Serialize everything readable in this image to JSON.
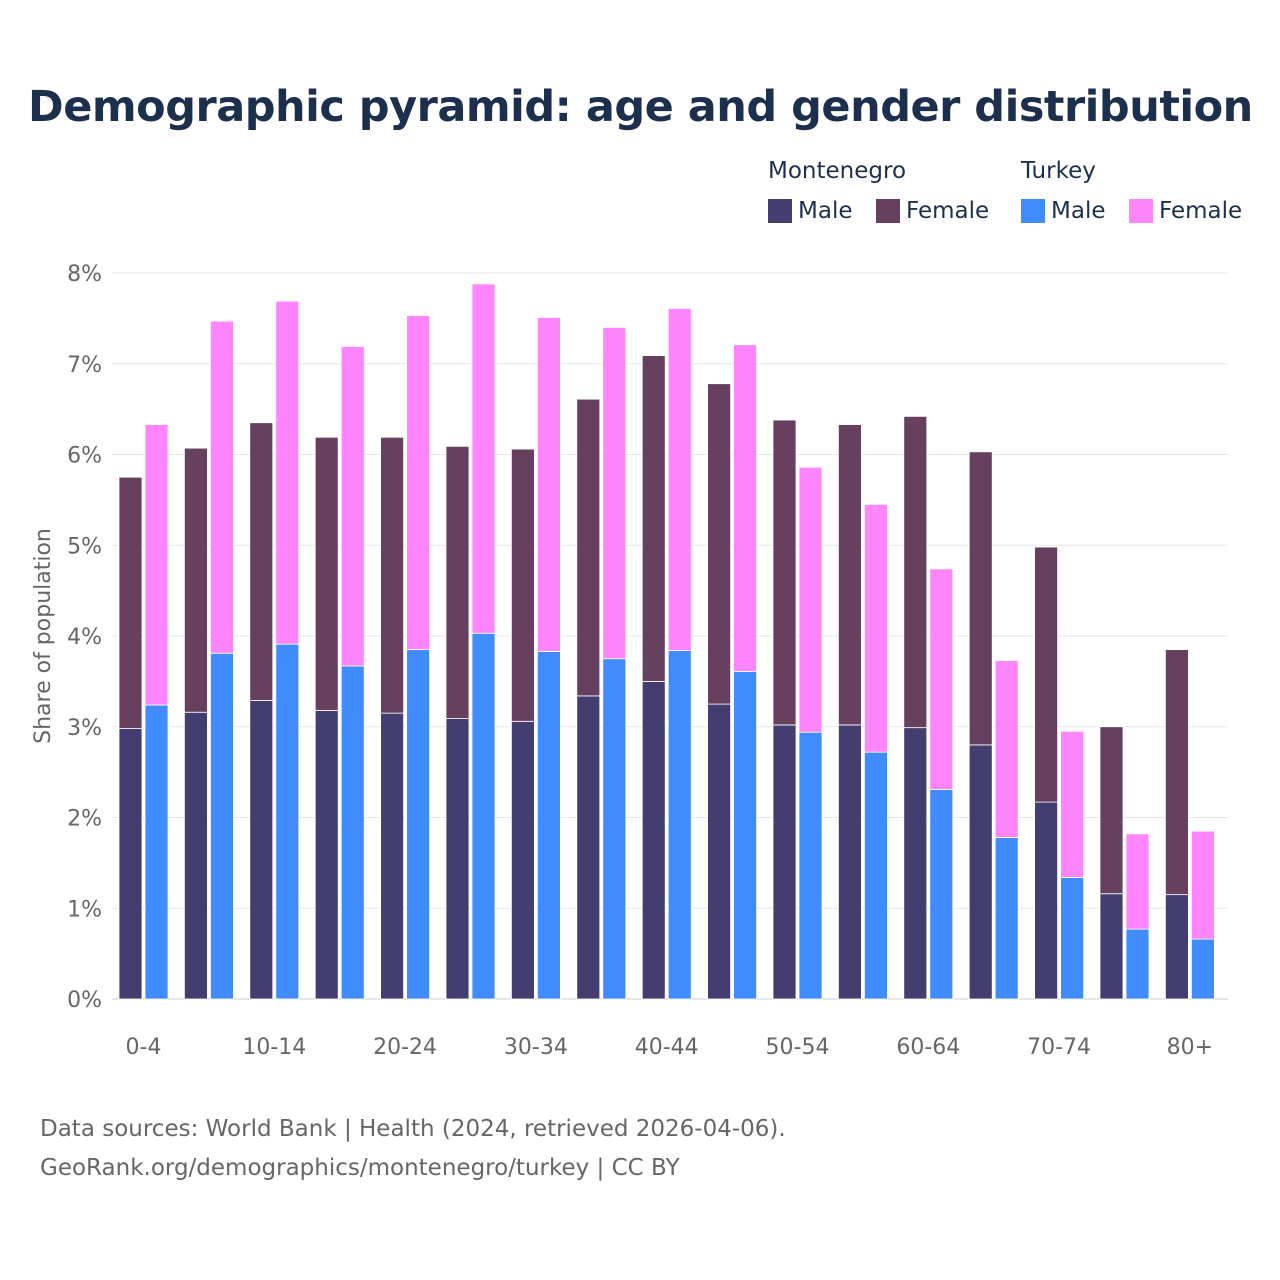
{
  "title": "Demographic pyramid: age and gender distribution",
  "legend": {
    "montenegro_title": "Montenegro",
    "turkey_title": "Turkey",
    "male_label": "Male",
    "female_label": "Female"
  },
  "colors": {
    "montenegro_male": "#433e6f",
    "montenegro_female": "#673f5f",
    "turkey_male": "#408cff",
    "turkey_female": "#ff85ff"
  },
  "source": {
    "line1": "Data sources: World Bank | Health (2024, retrieved 2026-04-06).",
    "line2": "GeoRank.org/demographics/montenegro/turkey | CC BY"
  },
  "chart_data": {
    "type": "bar",
    "stacked": true,
    "grouped": true,
    "title": "Demographic pyramid: age and gender distribution",
    "xlabel": "",
    "ylabel": "Share of population",
    "ylim": [
      0,
      8
    ],
    "yticks": [
      0,
      1,
      2,
      3,
      4,
      5,
      6,
      7,
      8
    ],
    "ytick_labels": [
      "0%",
      "1%",
      "2%",
      "3%",
      "4%",
      "5%",
      "6%",
      "7%",
      "8%"
    ],
    "grid": true,
    "legend_position": "top-right",
    "categories": [
      "0-4",
      "5-9",
      "10-14",
      "15-19",
      "20-24",
      "25-29",
      "30-34",
      "35-39",
      "40-44",
      "45-49",
      "50-54",
      "55-59",
      "60-64",
      "65-69",
      "70-74",
      "75-79",
      "80+"
    ],
    "visible_tick_labels": [
      "0-4",
      "10-14",
      "20-24",
      "30-34",
      "40-44",
      "50-54",
      "60-64",
      "70-74",
      "80+"
    ],
    "series": [
      {
        "name": "Male",
        "country": "Montenegro",
        "stack": "Montenegro",
        "values": [
          2.98,
          3.16,
          3.29,
          3.18,
          3.15,
          3.09,
          3.06,
          3.34,
          3.5,
          3.25,
          3.02,
          3.02,
          2.99,
          2.8,
          2.17,
          1.16,
          1.15
        ]
      },
      {
        "name": "Female",
        "country": "Montenegro",
        "stack": "Montenegro",
        "values": [
          2.77,
          2.91,
          3.06,
          3.01,
          3.04,
          3.0,
          3.0,
          3.27,
          3.59,
          3.53,
          3.36,
          3.31,
          3.43,
          3.23,
          2.81,
          1.84,
          2.7
        ]
      },
      {
        "name": "Male",
        "country": "Turkey",
        "stack": "Turkey",
        "values": [
          3.24,
          3.81,
          3.91,
          3.67,
          3.85,
          4.03,
          3.83,
          3.75,
          3.84,
          3.61,
          2.94,
          2.72,
          2.31,
          1.78,
          1.34,
          0.77,
          0.66
        ]
      },
      {
        "name": "Female",
        "country": "Turkey",
        "stack": "Turkey",
        "values": [
          3.09,
          3.66,
          3.78,
          3.52,
          3.68,
          3.85,
          3.68,
          3.65,
          3.77,
          3.6,
          2.92,
          2.73,
          2.43,
          1.95,
          1.61,
          1.05,
          1.19
        ]
      }
    ]
  }
}
